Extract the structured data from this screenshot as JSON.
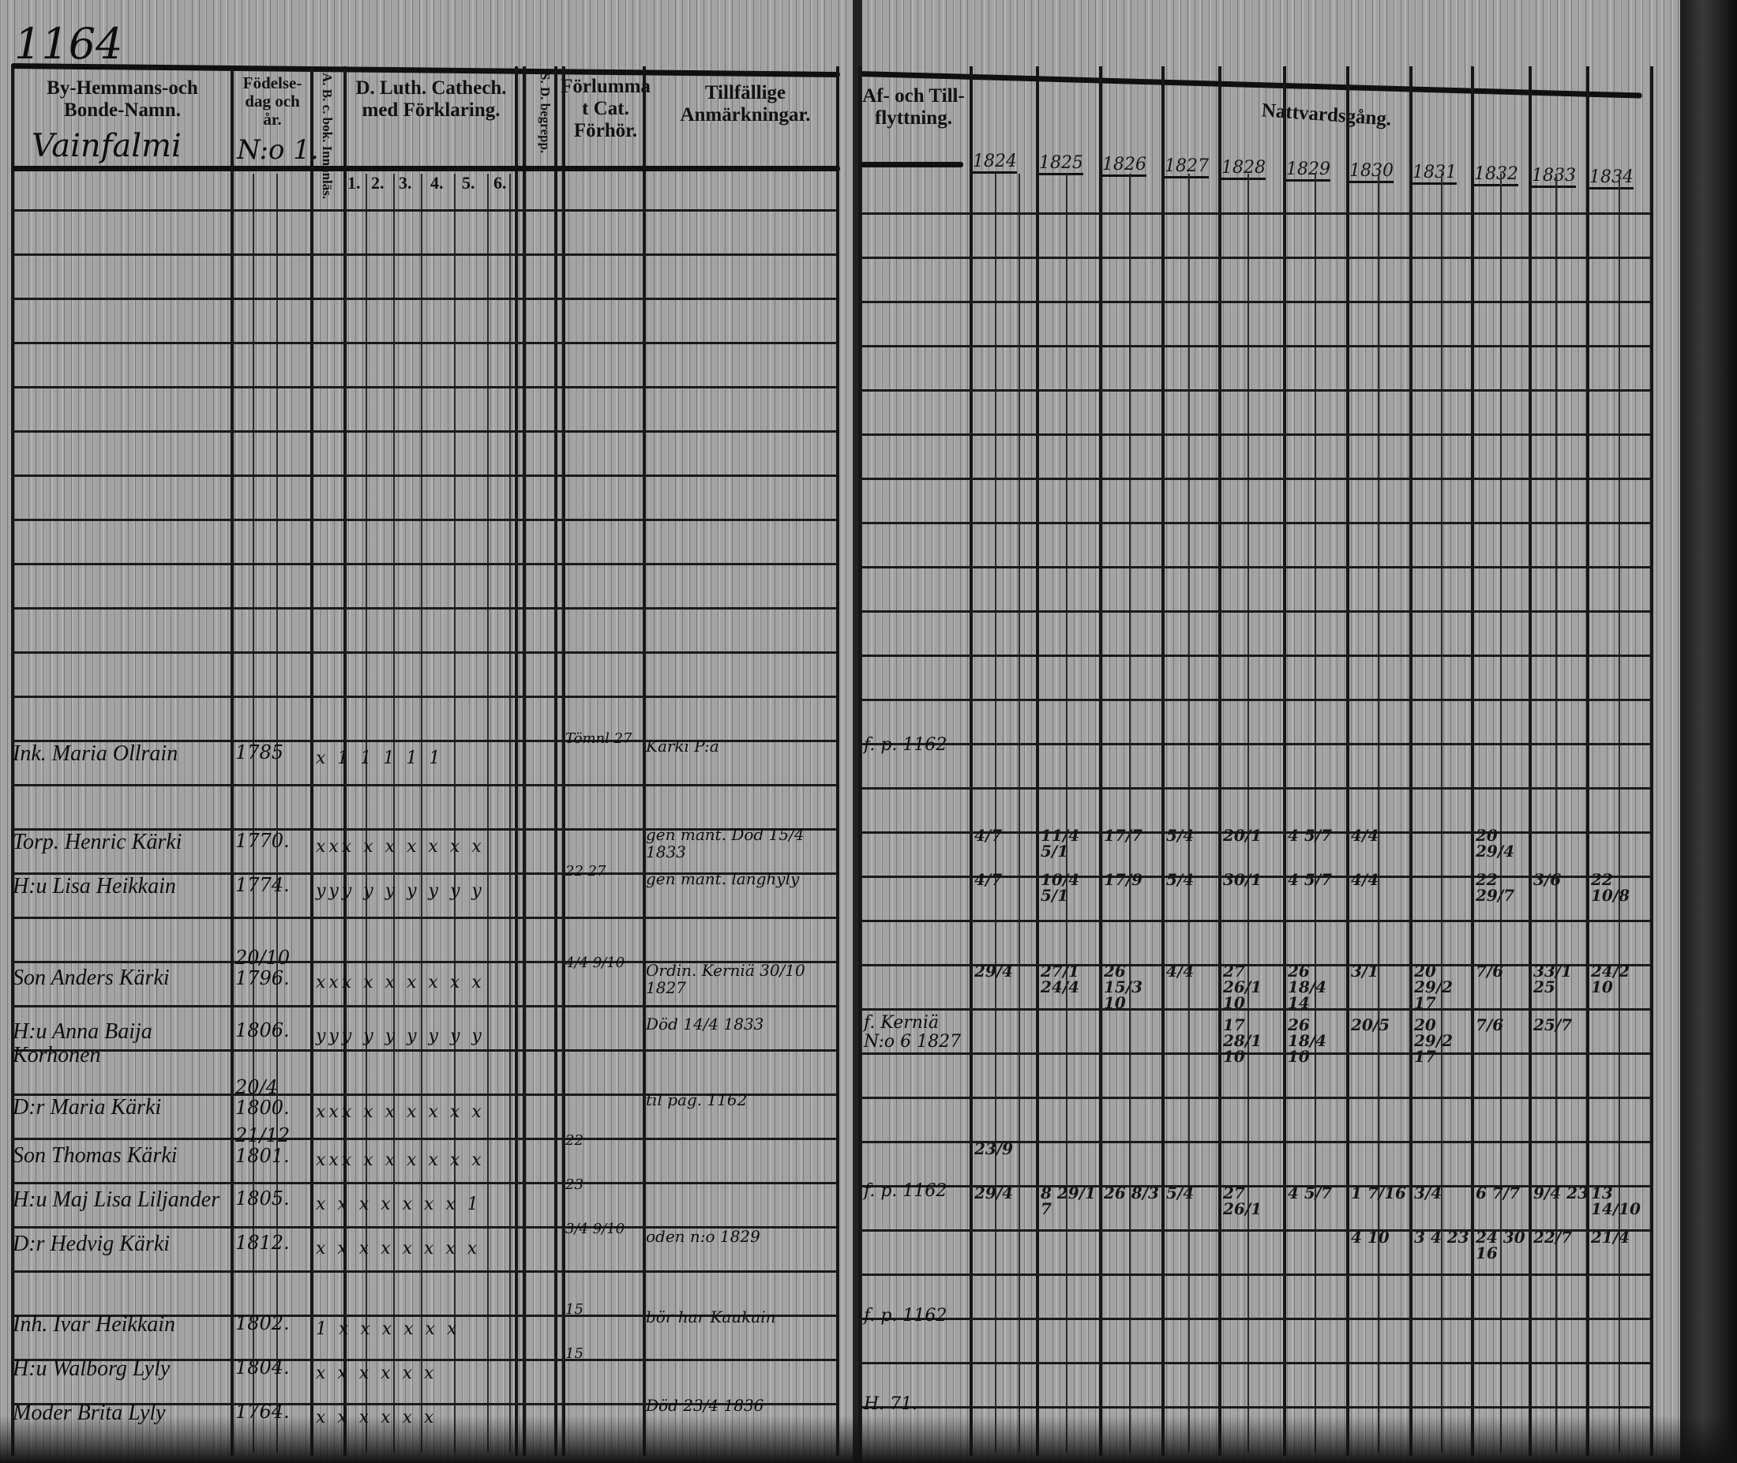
{
  "page_number": "1164",
  "left_headers": {
    "name": "By-Hemmans-och Bonde-Namn.",
    "birth": "Födelse-dag och år.",
    "abc": "A. B. c. bok. Innanläs.",
    "catechism": "D. Luth. Cathech. med Förklaring.",
    "catechism_subcols": [
      "1.",
      "2.",
      "3.",
      "4.",
      "5.",
      "6."
    ],
    "ds": "S. D. begrepp.",
    "forlummat": "Förlummat Cat. Förhör.",
    "remarks": "Tillfällige Anmärkningar."
  },
  "farm_name": "Vainfalmi",
  "household_number": "N:o 1.",
  "right_headers": {
    "moving": "Af- och Till-flyttning.",
    "communion": "Nattvardsgång.",
    "years": [
      "1824",
      "1825",
      "1826",
      "1827",
      "1828",
      "1829",
      "1830",
      "1831",
      "1832",
      "1833",
      "1834"
    ]
  },
  "rows": [
    {
      "name": "Ink. Maria Ollrain",
      "birth": "1785",
      "marks": "x 1 1 1 1 1",
      "forhor": "Tömnl 27",
      "remark": "Kärki P:a",
      "moving": "f. p. 1162",
      "communion": [
        "",
        "",
        "",
        "",
        "",
        "",
        "",
        "",
        "",
        "",
        ""
      ]
    },
    {
      "name": "Torp. Henric Kärki",
      "birth": "1770.",
      "marks": "xxx x x x x x x",
      "forhor": "",
      "remark": "gen mant. Död 15/4 1833",
      "moving": "",
      "communion": [
        "4/7",
        "11/4 5/1",
        "17/7",
        "5/4",
        "20/1",
        "4 5/7",
        "4/4",
        "",
        "20 29/4",
        "",
        ""
      ]
    },
    {
      "name": "H:u Lisa Heikkain",
      "birth": "1774.",
      "marks": "yyy y y y y y y",
      "forhor": "22 27",
      "remark": "gen mant. länghyly",
      "moving": "",
      "communion": [
        "4/7",
        "10/4 5/1",
        "17/9",
        "5/4",
        "30/1",
        "4 5/7",
        "4/4",
        "",
        "22 29/7",
        "3/6",
        "22 10/8"
      ]
    },
    {
      "name": "Son Anders Kärki",
      "birth": "20/10 1796.",
      "marks": "xxx x x x x x x",
      "forhor": "4/4 9/10",
      "remark": "Ordin. Kerniä 30/10 1827",
      "moving": "",
      "communion": [
        "29/4",
        "27/1 24/4",
        "26 15/3 10",
        "4/4",
        "27 26/1 10",
        "26 18/4 14",
        "3/1",
        "20 29/2 17",
        "7/6",
        "33/1 25",
        "24/2 10"
      ]
    },
    {
      "name": "H:u Anna Baija Korhonen",
      "birth": "1806.",
      "marks": "yyy y y y y y y",
      "forhor": "",
      "remark": "Död 14/4 1833",
      "moving": "f. Kerniä N:o 6 1827",
      "communion": [
        "",
        "",
        "",
        "",
        "17 28/1 10",
        "26 18/4 10",
        "20/5",
        "20 29/2 17",
        "7/6",
        "25/7",
        ""
      ]
    },
    {
      "name": "D:r Maria Kärki",
      "birth": "20/4 1800.",
      "marks": "xxx x x x x x x",
      "forhor": "",
      "remark": "til pag. 1162",
      "moving": "",
      "communion": [
        "",
        "",
        "",
        "",
        "",
        "",
        "",
        "",
        "",
        "",
        ""
      ]
    },
    {
      "name": "Son Thomas Kärki",
      "birth": "21/12 1801.",
      "marks": "xxx x x x x x x",
      "forhor": "22",
      "remark": "",
      "moving": "",
      "communion": [
        "23/9",
        "",
        "",
        "",
        "",
        "",
        "",
        "",
        "",
        "",
        ""
      ]
    },
    {
      "name": "H:u Maj Lisa Liljander",
      "birth": "1805.",
      "marks": "x x x x x x x 1",
      "forhor": "23",
      "remark": "",
      "moving": "f. p. 1162",
      "communion": [
        "29/4",
        "8 29/1 7",
        "26 8/3",
        "5/4",
        "27 26/1",
        "4 5/7",
        "1 7/16",
        "3/4",
        "6 7/7",
        "9/4 23",
        "13 14/10"
      ]
    },
    {
      "name": "D:r Hedvig Kärki",
      "birth": "1812.",
      "marks": "x x x x x x x x",
      "forhor": "3/4 9/10",
      "remark": "oden n:o 1829",
      "moving": "",
      "communion": [
        "",
        "",
        "",
        "",
        "",
        "",
        "4 10",
        "3 4 23",
        "24 30 16",
        "22/7",
        "21/4"
      ]
    },
    {
      "name": "Inh. Ivar Heikkain",
      "birth": "1802.",
      "marks": "1 x x x x x x",
      "forhor": "15",
      "remark": "bör har Kaukain",
      "moving": "f. p. 1162",
      "communion": [
        "",
        "",
        "",
        "",
        "",
        "",
        "",
        "",
        "",
        "",
        ""
      ]
    },
    {
      "name": "H:u Walborg Lyly",
      "birth": "1804.",
      "marks": "x x x x x x",
      "forhor": "15",
      "remark": "",
      "moving": "",
      "communion": [
        "",
        "",
        "",
        "",
        "",
        "",
        "",
        "",
        "",
        "",
        ""
      ]
    },
    {
      "name": "Moder Brita Lyly",
      "birth": "1764.",
      "marks": "x x x x x x",
      "forhor": "",
      "remark": "Död 23/4 1836",
      "moving": "H. 71.",
      "communion": [
        "",
        "",
        "",
        "",
        "",
        "",
        "",
        "",
        "",
        "",
        ""
      ]
    }
  ]
}
